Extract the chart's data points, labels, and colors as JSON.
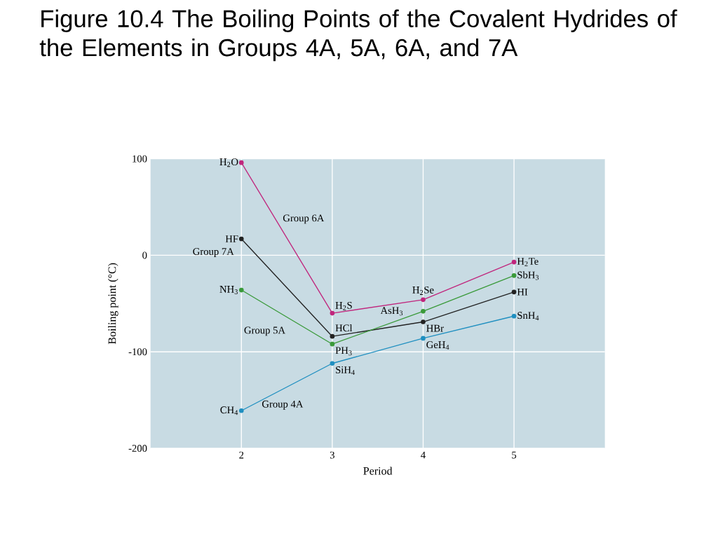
{
  "chart_data": {
    "type": "line",
    "title": "Figure 10.4  The Boiling Points of the Covalent Hydrides of the Elements in Groups 4A, 5A, 6A, and 7A",
    "xlabel": "Period",
    "ylabel": "Boiling point (°C)",
    "x": [
      2,
      3,
      4,
      5
    ],
    "series": [
      {
        "name": "Group 6A",
        "color": "#c0267d",
        "values": [
          96,
          -60,
          -46,
          -7
        ]
      },
      {
        "name": "Group 7A",
        "color": "#222222",
        "values": [
          17,
          -84,
          -69,
          -38
        ]
      },
      {
        "name": "Group 5A",
        "color": "#3a9a3a",
        "values": [
          -36,
          -92,
          -58,
          -21
        ]
      },
      {
        "name": "Group 4A",
        "color": "#1f8fc0",
        "values": [
          -161,
          -112,
          -86,
          -63
        ]
      }
    ],
    "xlim": [
      1,
      6
    ],
    "xticks": [
      2,
      3,
      4,
      5
    ],
    "ylim": [
      -200,
      100
    ],
    "yticks": [
      -200,
      -100,
      0,
      100
    ],
    "grid": true,
    "marker": "circle",
    "line_style": "solid",
    "annotations": [
      {
        "text": "H$_{2}$O",
        "x": 2,
        "y": 96
      },
      {
        "text": "H$_{2}$S",
        "x": 3,
        "y": -60
      },
      {
        "text": "H$_{2}$Se",
        "x": 4,
        "y": -46
      },
      {
        "text": "H$_{2}$Te",
        "x": 5,
        "y": -7
      },
      {
        "text": "HF",
        "x": 2,
        "y": 17
      },
      {
        "text": "HCl",
        "x": 3,
        "y": -84
      },
      {
        "text": "HBr",
        "x": 4,
        "y": -69
      },
      {
        "text": "HI",
        "x": 5,
        "y": -38
      },
      {
        "text": "NH$_{3}$",
        "x": 2,
        "y": -36
      },
      {
        "text": "PH$_{3}$",
        "x": 3,
        "y": -92
      },
      {
        "text": "AsH$_{3}$",
        "x": 4,
        "y": -58
      },
      {
        "text": "SbH$_{3}$",
        "x": 5,
        "y": -21
      },
      {
        "text": "CH$_{4}$",
        "x": 2,
        "y": -161
      },
      {
        "text": "SiH$_{4}$",
        "x": 3,
        "y": -112
      },
      {
        "text": "GeH$_{4}$",
        "x": 4,
        "y": -86
      },
      {
        "text": "SnH$_{4}$",
        "x": 5,
        "y": -63
      }
    ]
  }
}
